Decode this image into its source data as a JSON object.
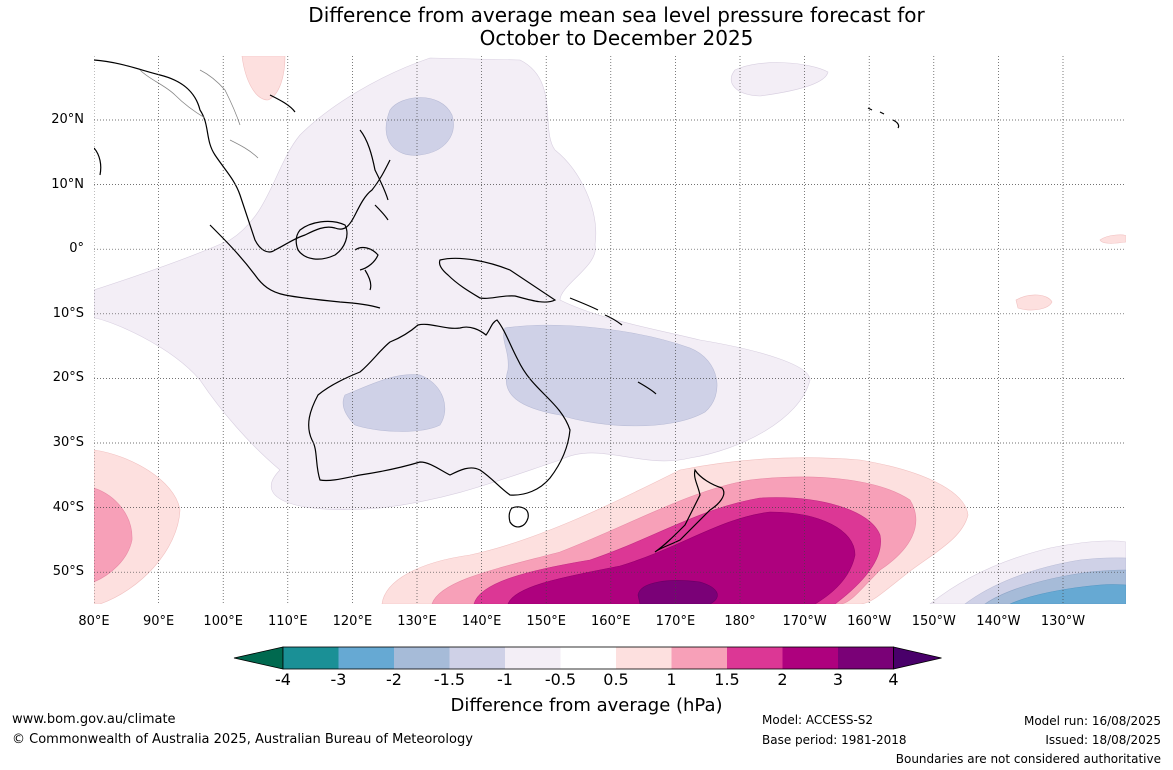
{
  "title": {
    "line1": "Difference from average mean sea level pressure forecast for",
    "line2": "October to December 2025"
  },
  "map": {
    "lat_labels": [
      "20°N",
      "10°N",
      "0°",
      "10°S",
      "20°S",
      "30°S",
      "40°S",
      "50°S"
    ],
    "lon_labels": [
      "80°E",
      "90°E",
      "100°E",
      "110°E",
      "120°E",
      "130°E",
      "140°E",
      "150°E",
      "160°E",
      "170°E",
      "180°",
      "170°W",
      "160°W",
      "150°W",
      "140°W",
      "130°W"
    ],
    "extent": {
      "lon_min": 80,
      "lon_max": 240,
      "lat_min": -55,
      "lat_max": 30
    },
    "regions": [
      {
        "name": "n-indian-pacific-weak-negative",
        "level": -0.5
      },
      {
        "name": "philippine-sea-negative",
        "level": -1
      },
      {
        "name": "coral-sea-negative",
        "level": -1
      },
      {
        "name": "inland-australia-negative",
        "level": -1
      },
      {
        "name": "tasman-positive-0.5",
        "level": 0.5
      },
      {
        "name": "tasman-positive-1",
        "level": 1
      },
      {
        "name": "tasman-positive-1.5",
        "level": 1.5
      },
      {
        "name": "tasman-positive-2",
        "level": 2
      },
      {
        "name": "tasman-positive-3",
        "level": 3
      },
      {
        "name": "se-pacific-negative",
        "level": -1.5
      }
    ]
  },
  "colorbar": {
    "labels": [
      "-4",
      "-3",
      "-2",
      "-1.5",
      "-1",
      "-0.5",
      "0.5",
      "1",
      "1.5",
      "2",
      "3",
      "4"
    ],
    "colors": [
      "#1a9096",
      "#66a9d3",
      "#a6bbd8",
      "#cfd1e7",
      "#f3eef6",
      "#ffffff",
      "#fde0df",
      "#f7a0b8",
      "#dc3795",
      "#ae017e",
      "#7a0177"
    ],
    "under_color": "#00694f",
    "over_color": "#49006a",
    "title": "Difference from average (hPa)"
  },
  "footer": {
    "url": "www.bom.gov.au/climate",
    "copyright": "© Commonwealth of Australia 2025, Australian Bureau of Meteorology",
    "model": "Model: ACCESS-S2",
    "base_period": "Base period: 1981-2018",
    "model_run": "Model run: 16/08/2025",
    "issued": "Issued: 18/08/2025",
    "disclaimer": "Boundaries are not considered authoritative"
  }
}
